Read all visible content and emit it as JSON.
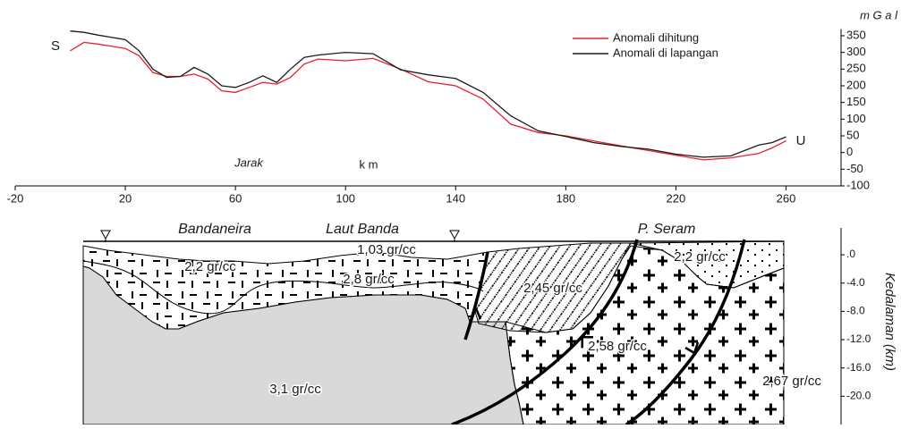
{
  "chart_data": [
    {
      "type": "line",
      "ylabel": "m G a l",
      "annotations": [
        "S",
        "U",
        "Jarak",
        "k m"
      ],
      "x": [
        0,
        5,
        10,
        20,
        25,
        30,
        35,
        40,
        45,
        50,
        55,
        60,
        65,
        70,
        75,
        80,
        85,
        90,
        100,
        110,
        120,
        130,
        140,
        150,
        160,
        170,
        180,
        190,
        200,
        210,
        220,
        230,
        240,
        250,
        255,
        260
      ],
      "series": [
        {
          "name": "Anomali dihitung",
          "color": "#e8202a",
          "values": [
            305,
            330,
            325,
            312,
            290,
            240,
            228,
            228,
            235,
            220,
            185,
            180,
            195,
            210,
            205,
            225,
            265,
            280,
            275,
            282,
            250,
            212,
            200,
            160,
            85,
            60,
            50,
            35,
            20,
            6,
            -8,
            -22,
            -16,
            -3,
            14,
            35
          ]
        },
        {
          "name": "Anomali di lapangan",
          "color": "#1a1a1a",
          "values": [
            364,
            360,
            352,
            338,
            305,
            250,
            225,
            228,
            255,
            235,
            200,
            195,
            210,
            230,
            210,
            250,
            285,
            292,
            300,
            296,
            248,
            233,
            222,
            180,
            110,
            65,
            48,
            30,
            18,
            10,
            -5,
            -14,
            -10,
            22,
            30,
            47
          ]
        }
      ],
      "xlim": [
        -20,
        280
      ],
      "xticks": [
        -20,
        20,
        60,
        100,
        140,
        180,
        220,
        260
      ],
      "ylim": [
        -100,
        370
      ],
      "yticks": [
        -100,
        -50,
        0,
        50,
        100,
        150,
        200,
        250,
        300,
        350
      ],
      "legend": "top-right"
    },
    {
      "type": "cross-section",
      "ylabel": "Kedalaman (km)",
      "place_labels": [
        "Bandaneira",
        "Laut Banda",
        "P. Seram"
      ],
      "density_labels": [
        "1,03 gr/cc",
        "2,2 gr/cc",
        "2,8 gr/cc",
        "2,45 gr/cc",
        "2,2 gr/cc",
        "2,58 gr/cc",
        "2,67 gr/cc",
        "3,1 gr/cc"
      ],
      "ylim": [
        -24,
        3.8
      ],
      "yticks": [
        {
          "value": 0,
          "label": ".0"
        },
        {
          "value": -4,
          "label": "-4.0"
        },
        {
          "value": -8,
          "label": "-8.0"
        },
        {
          "value": -12,
          "label": "-12.0"
        },
        {
          "value": -16,
          "label": "-16.0"
        },
        {
          "value": -20,
          "label": "-20.0"
        }
      ]
    }
  ]
}
